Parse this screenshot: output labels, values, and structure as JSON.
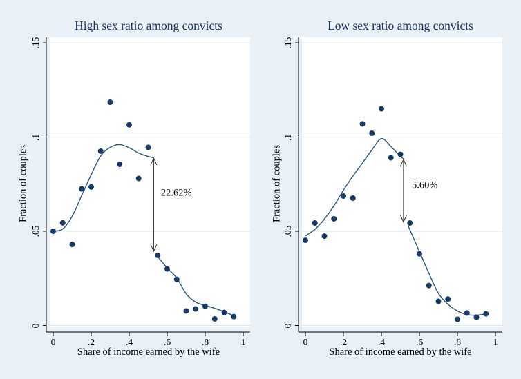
{
  "colors": {
    "background": "#e9f0f6",
    "plot_background": "#ffffff",
    "grid": "#dde8f0",
    "axis": "#000000",
    "marker": "#163a63",
    "line": "#2b5580",
    "title": "#1a3160",
    "text": "#000000",
    "arrow": "#3f3f3f"
  },
  "chart_data": [
    {
      "type": "scatter",
      "title": "High sex ratio among convicts",
      "xlabel": "Share of income earned by the wife",
      "ylabel": "Fraction of couples",
      "xlim": [
        0,
        1
      ],
      "ylim": [
        0,
        0.15
      ],
      "grid": "horizontal",
      "legend": "none",
      "x_ticks": {
        "values": [
          0,
          0.2,
          0.4,
          0.6,
          0.8,
          1
        ],
        "labels": [
          "0",
          ".2",
          ".4",
          ".6",
          ".8",
          "1"
        ]
      },
      "y_ticks": {
        "values": [
          0,
          0.05,
          0.1,
          0.15
        ],
        "labels": [
          "0",
          ".05",
          ".1",
          ".15"
        ]
      },
      "points": [
        [
          0.0,
          0.05
        ],
        [
          0.05,
          0.0545
        ],
        [
          0.1,
          0.043
        ],
        [
          0.15,
          0.0725
        ],
        [
          0.2,
          0.0735
        ],
        [
          0.25,
          0.0925
        ],
        [
          0.3,
          0.1185
        ],
        [
          0.35,
          0.0855
        ],
        [
          0.4,
          0.1065
        ],
        [
          0.45,
          0.078
        ],
        [
          0.5,
          0.0945
        ],
        [
          0.55,
          0.0372
        ],
        [
          0.6,
          0.03
        ],
        [
          0.65,
          0.0245
        ],
        [
          0.7,
          0.0077
        ],
        [
          0.75,
          0.0088
        ],
        [
          0.8,
          0.0102
        ],
        [
          0.85,
          0.0035
        ],
        [
          0.9,
          0.0069
        ],
        [
          0.95,
          0.0047
        ]
      ],
      "lowess_segments": [
        [
          [
            0.0,
            0.05
          ],
          [
            0.05,
            0.0512
          ],
          [
            0.1,
            0.058
          ],
          [
            0.15,
            0.069
          ],
          [
            0.2,
            0.08
          ],
          [
            0.25,
            0.09
          ],
          [
            0.3,
            0.0945
          ],
          [
            0.35,
            0.096
          ],
          [
            0.4,
            0.0943
          ],
          [
            0.45,
            0.0915
          ],
          [
            0.5,
            0.0897
          ],
          [
            0.53,
            0.0889
          ]
        ],
        [
          [
            0.55,
            0.0365
          ],
          [
            0.6,
            0.0305
          ],
          [
            0.65,
            0.0252
          ],
          [
            0.7,
            0.0168
          ],
          [
            0.75,
            0.0124
          ],
          [
            0.8,
            0.0106
          ],
          [
            0.85,
            0.0091
          ],
          [
            0.9,
            0.0073
          ],
          [
            0.95,
            0.0051
          ]
        ]
      ],
      "annotation": {
        "text": "22.62%",
        "arrow_x": 0.529,
        "arrow_y_top": 0.0888,
        "arrow_y_bottom": 0.0394,
        "label_x": 0.567,
        "label_y": 0.0701
      }
    },
    {
      "type": "scatter",
      "title": "Low sex ratio among convicts",
      "xlabel": "Share of income earned by the wife",
      "ylabel": "Fraction of couples",
      "xlim": [
        0,
        1
      ],
      "ylim": [
        0,
        0.15
      ],
      "grid": "horizontal",
      "legend": "none",
      "x_ticks": {
        "values": [
          0,
          0.2,
          0.4,
          0.6,
          0.8,
          1
        ],
        "labels": [
          "0",
          ".2",
          ".4",
          ".6",
          ".8",
          "1"
        ]
      },
      "y_ticks": {
        "values": [
          0,
          0.05,
          0.1,
          0.15
        ],
        "labels": [
          "0",
          ".05",
          ".1",
          ".15"
        ]
      },
      "points": [
        [
          0.0,
          0.0452
        ],
        [
          0.05,
          0.0544
        ],
        [
          0.1,
          0.0474
        ],
        [
          0.15,
          0.0566
        ],
        [
          0.2,
          0.0687
        ],
        [
          0.25,
          0.0676
        ],
        [
          0.3,
          0.107
        ],
        [
          0.35,
          0.102
        ],
        [
          0.4,
          0.115
        ],
        [
          0.45,
          0.089
        ],
        [
          0.5,
          0.0908
        ],
        [
          0.55,
          0.0544
        ],
        [
          0.6,
          0.038
        ],
        [
          0.65,
          0.0212
        ],
        [
          0.7,
          0.0128
        ],
        [
          0.75,
          0.014
        ],
        [
          0.8,
          0.0033
        ],
        [
          0.85,
          0.0066
        ],
        [
          0.9,
          0.0044
        ],
        [
          0.95,
          0.0062
        ]
      ],
      "lowess_segments": [
        [
          [
            0.0,
            0.0475
          ],
          [
            0.05,
            0.051
          ],
          [
            0.1,
            0.0565
          ],
          [
            0.15,
            0.0635
          ],
          [
            0.2,
            0.0718
          ],
          [
            0.25,
            0.0793
          ],
          [
            0.3,
            0.0862
          ],
          [
            0.35,
            0.0932
          ],
          [
            0.4,
            0.0992
          ],
          [
            0.45,
            0.095
          ],
          [
            0.5,
            0.0897
          ],
          [
            0.52,
            0.0883
          ]
        ],
        [
          [
            0.54,
            0.053
          ],
          [
            0.6,
            0.0392
          ],
          [
            0.65,
            0.0277
          ],
          [
            0.7,
            0.017
          ],
          [
            0.75,
            0.0113
          ],
          [
            0.8,
            0.0077
          ],
          [
            0.85,
            0.0058
          ],
          [
            0.9,
            0.0055
          ],
          [
            0.95,
            0.0062
          ]
        ]
      ],
      "annotation": {
        "text": "5.60%",
        "arrow_x": 0.516,
        "arrow_y_top": 0.0881,
        "arrow_y_bottom": 0.0549,
        "label_x": 0.56,
        "label_y": 0.074
      }
    }
  ]
}
